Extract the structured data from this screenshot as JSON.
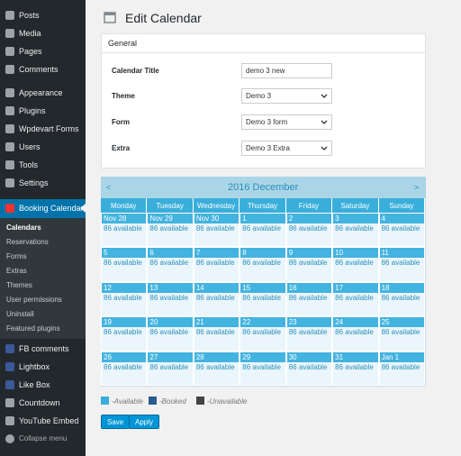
{
  "sidebar": {
    "menu": [
      "Posts",
      "Media",
      "Pages",
      "Comments",
      "Appearance",
      "Plugins",
      "Wpdevart Forms",
      "Users",
      "Tools",
      "Settings"
    ],
    "active": "Booking Calendar",
    "submenu": [
      "Calendars",
      "Reservations",
      "Forms",
      "Extras",
      "Themes",
      "User permissions",
      "Uninstall",
      "Featured plugins"
    ],
    "menu2": [
      "FB comments",
      "Lightbox",
      "Like Box",
      "Countdown",
      "YouTube Embed"
    ],
    "collapse": "Collapse menu"
  },
  "header": {
    "title": "Edit Calendar"
  },
  "general": {
    "title": "General",
    "fields": [
      {
        "label": "Calendar Title",
        "value": "demo 3 new"
      },
      {
        "label": "Theme",
        "value": "Demo 3"
      },
      {
        "label": "Form",
        "value": "Demo 3 form"
      },
      {
        "label": "Extra",
        "value": "Demo 3 Extra"
      }
    ]
  },
  "calendar": {
    "prev": "<",
    "month": "2016 December",
    "next": ">",
    "weekdays": [
      "Monday",
      "Tuesday",
      "Wednesday",
      "Thursday",
      "Friday",
      "Saturday",
      "Sunday"
    ],
    "weeks": [
      [
        {
          "date": "Nov 28",
          "status": "86 available"
        },
        {
          "date": "Nov 29",
          "status": "86 available"
        },
        {
          "date": "Nov 30",
          "status": "86 available"
        },
        {
          "date": "1",
          "status": "86 available"
        },
        {
          "date": "2",
          "status": "86 available"
        },
        {
          "date": "3",
          "status": "86 available"
        },
        {
          "date": "4",
          "status": "86 available"
        }
      ],
      [
        {
          "date": "5",
          "status": "86 available"
        },
        {
          "date": "6",
          "status": "86 available"
        },
        {
          "date": "7",
          "status": "86 available"
        },
        {
          "date": "8",
          "status": "86 available"
        },
        {
          "date": "9",
          "status": "86 available"
        },
        {
          "date": "10",
          "status": "86 available"
        },
        {
          "date": "11",
          "status": "86 available"
        }
      ],
      [
        {
          "date": "12",
          "status": "86 available"
        },
        {
          "date": "13",
          "status": "86 available"
        },
        {
          "date": "14",
          "status": "86 available"
        },
        {
          "date": "15",
          "status": "86 available"
        },
        {
          "date": "16",
          "status": "86 available"
        },
        {
          "date": "17",
          "status": "86 available"
        },
        {
          "date": "18",
          "status": "86 available"
        }
      ],
      [
        {
          "date": "19",
          "status": "86 available"
        },
        {
          "date": "20",
          "status": "86 available"
        },
        {
          "date": "21",
          "status": "86 available"
        },
        {
          "date": "22",
          "status": "86 available"
        },
        {
          "date": "23",
          "status": "86 available"
        },
        {
          "date": "24",
          "status": "86 available"
        },
        {
          "date": "25",
          "status": "86 available"
        }
      ],
      [
        {
          "date": "26",
          "status": "86 available"
        },
        {
          "date": "27",
          "status": "86 available"
        },
        {
          "date": "28",
          "status": "86 available"
        },
        {
          "date": "29",
          "status": "86 available"
        },
        {
          "date": "30",
          "status": "86 available"
        },
        {
          "date": "31",
          "status": "86 available"
        },
        {
          "date": "Jan 1",
          "status": "86 available"
        }
      ]
    ]
  },
  "legend": [
    "-Available",
    "-Booked",
    "-Unavailable"
  ],
  "buttons": [
    "Save",
    "Apply"
  ]
}
